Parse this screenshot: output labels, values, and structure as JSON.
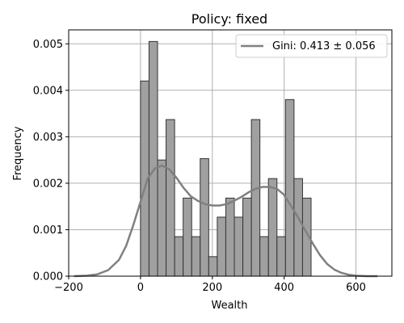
{
  "chart_data": {
    "type": "bar",
    "title": "Policy: fixed",
    "xlabel": "Wealth",
    "ylabel": "Frequency",
    "xlim": [
      -200,
      700
    ],
    "ylim": [
      0,
      0.0053
    ],
    "xticks": [
      -200,
      0,
      200,
      400,
      600
    ],
    "xtick_labels": [
      "−200",
      "0",
      "200",
      "400",
      "600"
    ],
    "yticks": [
      0,
      0.001,
      0.002,
      0.003,
      0.004,
      0.005
    ],
    "ytick_labels": [
      "0.000",
      "0.001",
      "0.002",
      "0.003",
      "0.004",
      "0.005"
    ],
    "grid": true,
    "legend": {
      "position": "top-right",
      "entries": [
        "Gini: 0.413 ± 0.056"
      ]
    },
    "histogram": {
      "bin_start": 0,
      "bin_width": 23.75,
      "values": [
        0.0042,
        0.00505,
        0.0025,
        0.00337,
        0.00085,
        0.00168,
        0.00085,
        0.00253,
        0.00042,
        0.00127,
        0.00168,
        0.00127,
        0.00168,
        0.00337,
        0.00085,
        0.0021,
        0.00085,
        0.0038,
        0.0021,
        0.00168
      ],
      "color": "#a0a0a0",
      "edge_color": "#333333"
    },
    "kde": {
      "name": "Gini: 0.413 ± 0.056",
      "color": "#808080",
      "x": [
        -185,
        -150,
        -120,
        -90,
        -60,
        -40,
        -20,
        0,
        20,
        40,
        60,
        80,
        100,
        120,
        140,
        160,
        180,
        200,
        220,
        240,
        260,
        280,
        300,
        320,
        340,
        360,
        380,
        400,
        420,
        440,
        460,
        480,
        500,
        520,
        540,
        560,
        580,
        600,
        630,
        660
      ],
      "y": [
        0.0,
        1e-05,
        4e-05,
        0.00013,
        0.00035,
        0.00065,
        0.0011,
        0.0016,
        0.0021,
        0.00232,
        0.00238,
        0.0023,
        0.00212,
        0.0019,
        0.00172,
        0.00162,
        0.00155,
        0.00152,
        0.00152,
        0.00155,
        0.00162,
        0.0017,
        0.0018,
        0.00188,
        0.00192,
        0.00192,
        0.00188,
        0.00175,
        0.0015,
        0.00125,
        0.00097,
        0.0007,
        0.00045,
        0.00026,
        0.00014,
        7e-05,
        3e-05,
        1e-05,
        0.0,
        0.0
      ]
    }
  }
}
